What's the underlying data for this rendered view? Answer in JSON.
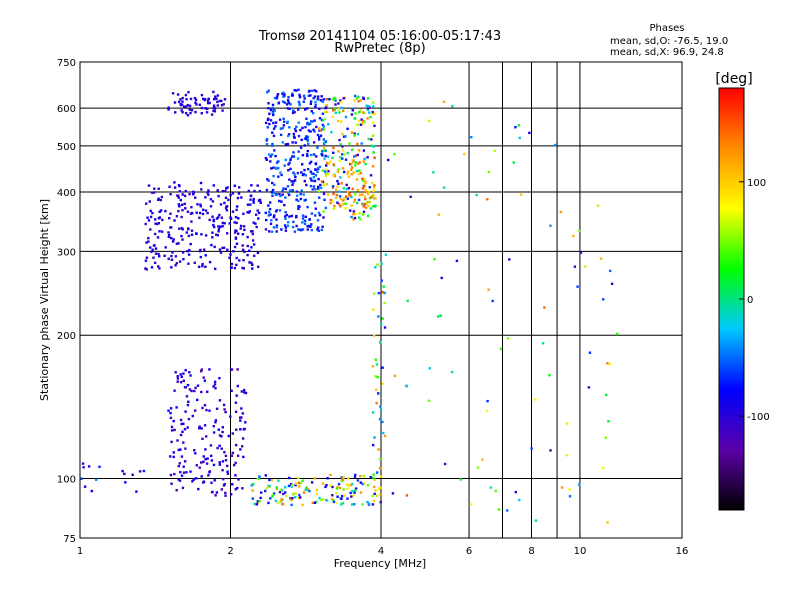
{
  "chart_data": {
    "type": "scatter",
    "title": "Tromsø 20141104 05:16:00-05:17:43",
    "subtitle": "RwPretec (8p)",
    "xlabel": "Frequency [MHz]",
    "ylabel": "Stationary phase Virtual Height [km]",
    "x_scale": "log",
    "y_scale": "log",
    "xlim": [
      1,
      16
    ],
    "ylim": [
      75,
      750
    ],
    "x_ticks": [
      1,
      2,
      4,
      6,
      8,
      10,
      16
    ],
    "x_tick_labels": [
      "1",
      "2",
      "4",
      "6",
      "8",
      "10",
      "16"
    ],
    "x_minor_gridlines": [
      7,
      9
    ],
    "y_ticks": [
      75,
      100,
      200,
      300,
      400,
      500,
      600,
      750
    ],
    "y_tick_labels": [
      "75",
      "100",
      "200",
      "300",
      "400",
      "500",
      "600",
      "750"
    ],
    "grid": true,
    "phase_note": {
      "title": "Phases",
      "line1": "mean, sd,O: -76.5, 19.0",
      "line2": "mean, sd,X:  96.9, 24.8"
    },
    "colorbar": {
      "label": "[deg]",
      "range": [
        -180,
        180
      ],
      "ticks": [
        100,
        0,
        -100
      ],
      "tick_labels": [
        "100",
        "0",
        "-100"
      ],
      "colors": [
        "#000000",
        "#5a00a8",
        "#0000ff",
        "#00c8ff",
        "#00ff00",
        "#ffff00",
        "#ff8c00",
        "#ff0000"
      ]
    },
    "clusters": [
      {
        "name": "",
        "f": [
          1.5,
          1.95
        ],
        "h": [
          580,
          650
        ],
        "phase": [
          -110,
          -90
        ],
        "count": 70
      },
      {
        "name": "",
        "f": [
          1.35,
          2.3
        ],
        "h": [
          275,
          420
        ],
        "phase": [
          -115,
          -80
        ],
        "count": 300
      },
      {
        "name": "",
        "f": [
          2.35,
          3.1
        ],
        "h": [
          330,
          660
        ],
        "phase": [
          -100,
          -40
        ],
        "count": 380
      },
      {
        "name": "",
        "f": [
          3.0,
          3.9
        ],
        "h": [
          350,
          640
        ],
        "phase": [
          -120,
          150
        ],
        "count": 220
      },
      {
        "name": "",
        "f": [
          3.1,
          3.9
        ],
        "h": [
          370,
          470
        ],
        "phase": [
          90,
          150
        ],
        "count": 70
      },
      {
        "name": "",
        "f": [
          1.5,
          2.15
        ],
        "h": [
          92,
          170
        ],
        "phase": [
          -125,
          -80
        ],
        "count": 200
      },
      {
        "name": "",
        "f": [
          2.2,
          4.0
        ],
        "h": [
          88,
          102
        ],
        "phase": [
          -120,
          140
        ],
        "count": 160
      },
      {
        "name": "",
        "f": [
          1.0,
          1.35
        ],
        "h": [
          93,
          108
        ],
        "phase": [
          -110,
          -40
        ],
        "count": 15
      },
      {
        "name": "",
        "f": [
          3.85,
          4.1
        ],
        "h": [
          100,
          300
        ],
        "phase": [
          -90,
          150
        ],
        "count": 45
      },
      {
        "name": "",
        "f": [
          4.1,
          12.0
        ],
        "h": [
          80,
          640
        ],
        "phase": [
          -130,
          150
        ],
        "count": 90
      }
    ]
  }
}
